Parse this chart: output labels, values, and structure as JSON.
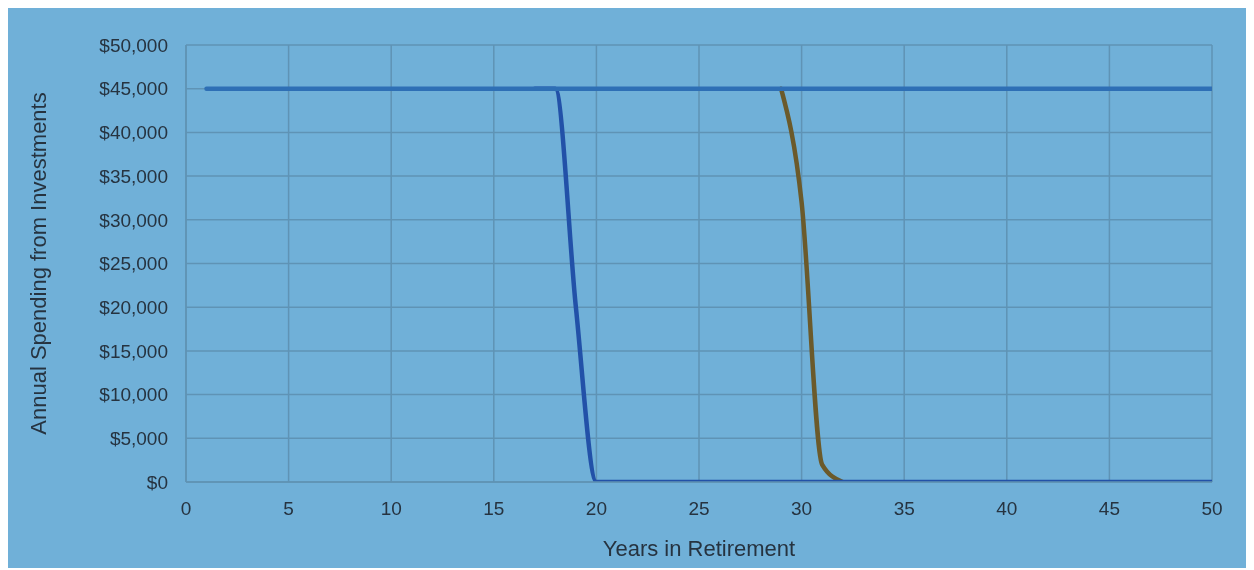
{
  "chart_data": {
    "type": "line",
    "xlabel": "Years in Retirement",
    "ylabel": "Annual Spending from Investments",
    "x": [
      1,
      2,
      3,
      4,
      5,
      6,
      7,
      8,
      9,
      10,
      11,
      12,
      13,
      14,
      15,
      16,
      17,
      18,
      19,
      20,
      21,
      22,
      23,
      24,
      25,
      26,
      27,
      28,
      29,
      30,
      31,
      32,
      33,
      34,
      35,
      36,
      37,
      38,
      39,
      40,
      41,
      42,
      43,
      44,
      45,
      46,
      47,
      48,
      49,
      50
    ],
    "series": [
      {
        "color": "#6b5a2b",
        "values": [
          null,
          null,
          null,
          null,
          null,
          null,
          null,
          null,
          null,
          null,
          null,
          null,
          null,
          null,
          null,
          null,
          null,
          null,
          null,
          null,
          null,
          null,
          null,
          null,
          null,
          null,
          null,
          null,
          45000,
          32000,
          2000,
          0,
          null,
          null,
          null,
          null,
          null,
          null,
          null,
          null,
          null,
          null,
          null,
          null,
          null,
          null,
          null,
          null,
          null,
          null
        ]
      },
      {
        "color": "#2251a8",
        "values": [
          null,
          null,
          null,
          null,
          null,
          null,
          null,
          null,
          null,
          null,
          null,
          null,
          null,
          null,
          null,
          null,
          45000,
          45000,
          20000,
          0,
          0,
          0,
          0,
          0,
          0,
          0,
          0,
          0,
          0,
          0,
          0,
          0,
          0,
          0,
          0,
          0,
          0,
          0,
          0,
          0,
          0,
          0,
          0,
          0,
          0,
          0,
          0,
          0,
          0,
          0
        ]
      },
      {
        "color": "#2e6fb5",
        "values": [
          45000,
          45000,
          45000,
          45000,
          45000,
          45000,
          45000,
          45000,
          45000,
          45000,
          45000,
          45000,
          45000,
          45000,
          45000,
          45000,
          45000,
          45000,
          45000,
          45000,
          45000,
          45000,
          45000,
          45000,
          45000,
          45000,
          45000,
          45000,
          45000,
          45000,
          45000,
          45000,
          45000,
          45000,
          45000,
          45000,
          45000,
          45000,
          45000,
          45000,
          45000,
          45000,
          45000,
          45000,
          45000,
          45000,
          45000,
          45000,
          45000,
          45000
        ]
      }
    ],
    "xlim": [
      0,
      50
    ],
    "xticks": [
      0,
      5,
      10,
      15,
      20,
      25,
      30,
      35,
      40,
      45,
      50
    ],
    "ylim": [
      0,
      50000
    ],
    "yticks": [
      {
        "value": 0,
        "label": "$0"
      },
      {
        "value": 5000,
        "label": "$5,000"
      },
      {
        "value": 10000,
        "label": "$10,000"
      },
      {
        "value": 15000,
        "label": "$15,000"
      },
      {
        "value": 20000,
        "label": "$20,000"
      },
      {
        "value": 25000,
        "label": "$25,000"
      },
      {
        "value": 30000,
        "label": "$30,000"
      },
      {
        "value": 35000,
        "label": "$35,000"
      },
      {
        "value": 40000,
        "label": "$40,000"
      },
      {
        "value": 45000,
        "label": "$45,000"
      },
      {
        "value": 50000,
        "label": "$50,000"
      }
    ],
    "grid": true,
    "marker": "none",
    "line_style": "solid"
  }
}
